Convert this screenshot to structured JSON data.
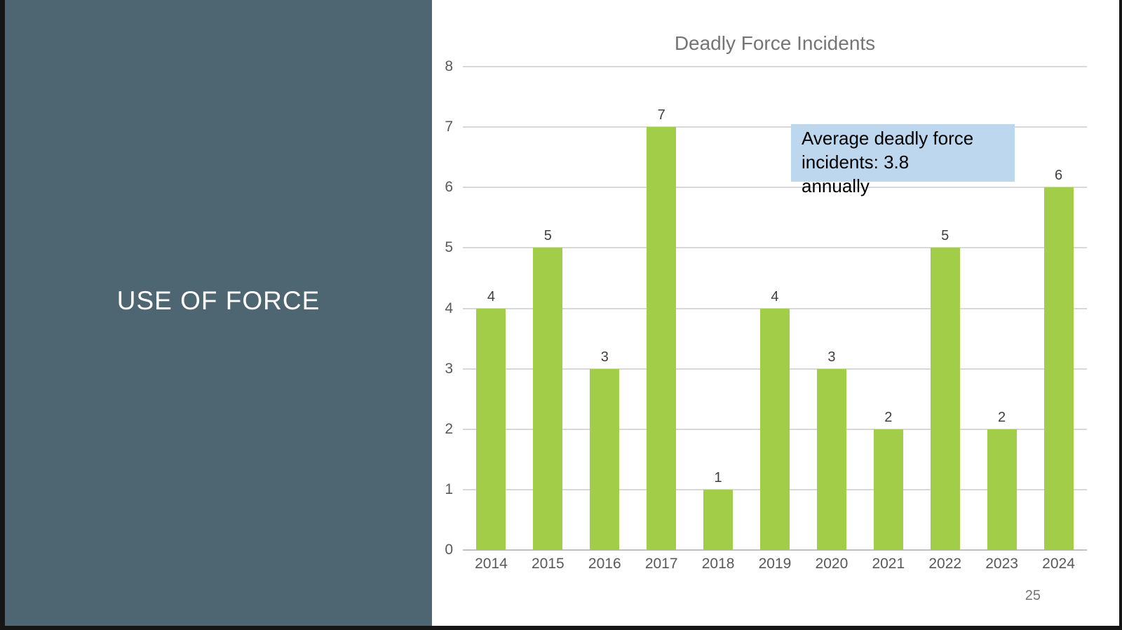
{
  "slide": {
    "left_panel": {
      "title": "USE OF FORCE",
      "bg_color": "#4e6572",
      "text_color": "#ffffff"
    },
    "page_number": "25"
  },
  "chart_data": {
    "type": "bar",
    "title": "Deadly Force Incidents",
    "categories": [
      "2014",
      "2015",
      "2016",
      "2017",
      "2018",
      "2019",
      "2020",
      "2021",
      "2022",
      "2023",
      "2024"
    ],
    "values": [
      4,
      5,
      3,
      7,
      1,
      4,
      3,
      2,
      5,
      2,
      6
    ],
    "xlabel": "",
    "ylabel": "",
    "ylim": [
      0,
      8
    ],
    "ytick_interval": 1,
    "grid": true,
    "legend": "none",
    "bar_color": "#a2cd49",
    "data_labels": true,
    "title_color": "#757575",
    "axis_label_color": "#58595b"
  },
  "annotation": {
    "text": "Average deadly force incidents: 3.8 annually",
    "lines": [
      "Average deadly force",
      "incidents: 3.8",
      "annually"
    ],
    "highlight_color": "#bdd7ee",
    "highlighted_lines": 2
  }
}
